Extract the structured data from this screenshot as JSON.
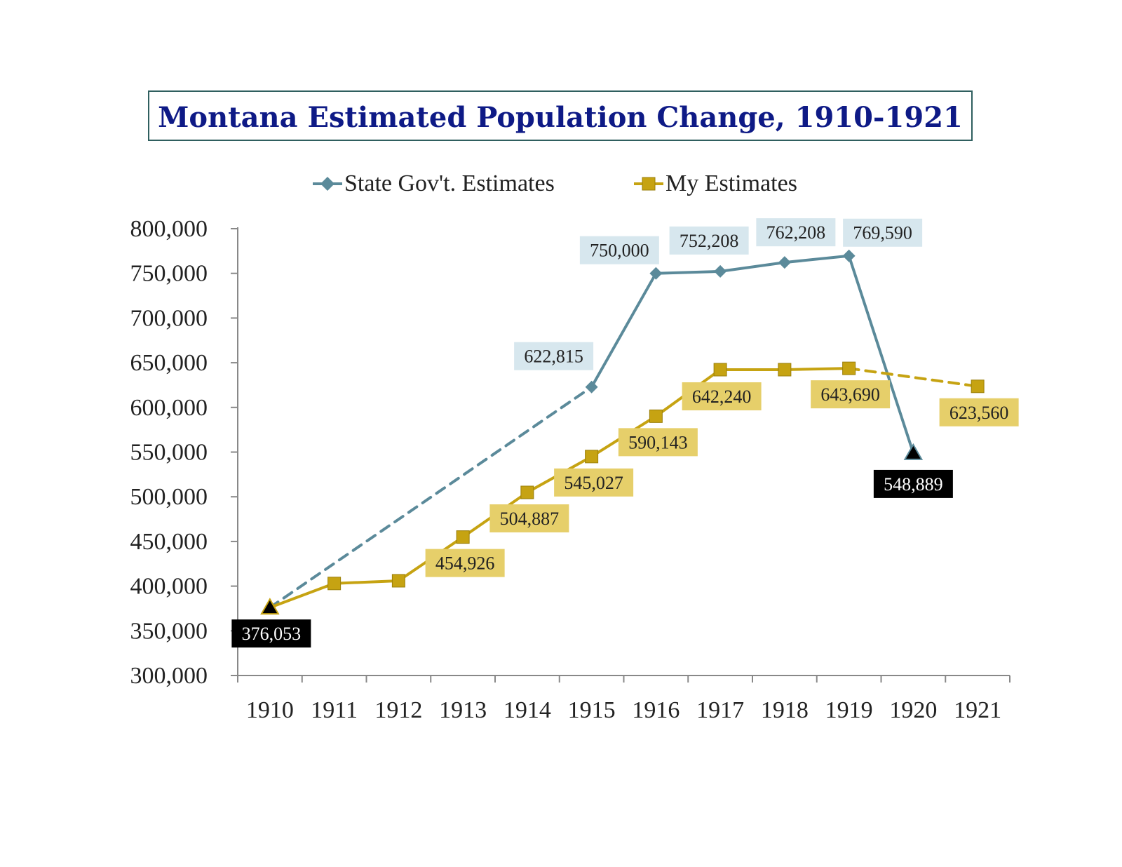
{
  "chart_data": {
    "type": "line",
    "title": "Montana Estimated Population Change, 1910-1921",
    "categories": [
      "1910",
      "1911",
      "1912",
      "1913",
      "1914",
      "1915",
      "1916",
      "1917",
      "1918",
      "1919",
      "1920",
      "1921"
    ],
    "ylim": [
      300000,
      800000
    ],
    "yticks": [
      "300,000",
      "350,000",
      "400,000",
      "450,000",
      "500,000",
      "550,000",
      "600,000",
      "650,000",
      "700,000",
      "750,000",
      "800,000"
    ],
    "ytick_values": [
      300000,
      350000,
      400000,
      450000,
      500000,
      550000,
      600000,
      650000,
      700000,
      750000,
      800000
    ],
    "legend": {
      "position": "top"
    },
    "series": [
      {
        "name": "State Gov't. Estimates",
        "color": "#5b8a9a",
        "marker": "diamond",
        "values": [
          376053,
          null,
          null,
          null,
          null,
          622815,
          750000,
          752208,
          762208,
          769590,
          548889,
          null
        ],
        "labels": [
          null,
          null,
          null,
          null,
          null,
          "622,815",
          "750,000",
          "752,208",
          "762,208",
          "769,590",
          null,
          null
        ],
        "dashed_segments": [
          [
            0,
            5
          ]
        ],
        "label_bg": "#d7e7ee"
      },
      {
        "name": "My Estimates",
        "color": "#c6a312",
        "marker": "square",
        "values": [
          376053,
          403000,
          406000,
          454926,
          504887,
          545027,
          590143,
          642240,
          642240,
          643690,
          null,
          623560
        ],
        "labels": [
          null,
          null,
          null,
          "454,926",
          "504,887",
          "545,027",
          "590,143",
          "642,240",
          null,
          "643,690",
          null,
          "623,560"
        ],
        "dashed_segments": [
          [
            7,
            9
          ],
          [
            9,
            11
          ]
        ],
        "label_bg": "#e6cf6a"
      }
    ],
    "special_points": [
      {
        "index": 0,
        "value": 376053,
        "label": "376,053"
      },
      {
        "index": 10,
        "value": 548889,
        "label": "548,889"
      }
    ]
  }
}
